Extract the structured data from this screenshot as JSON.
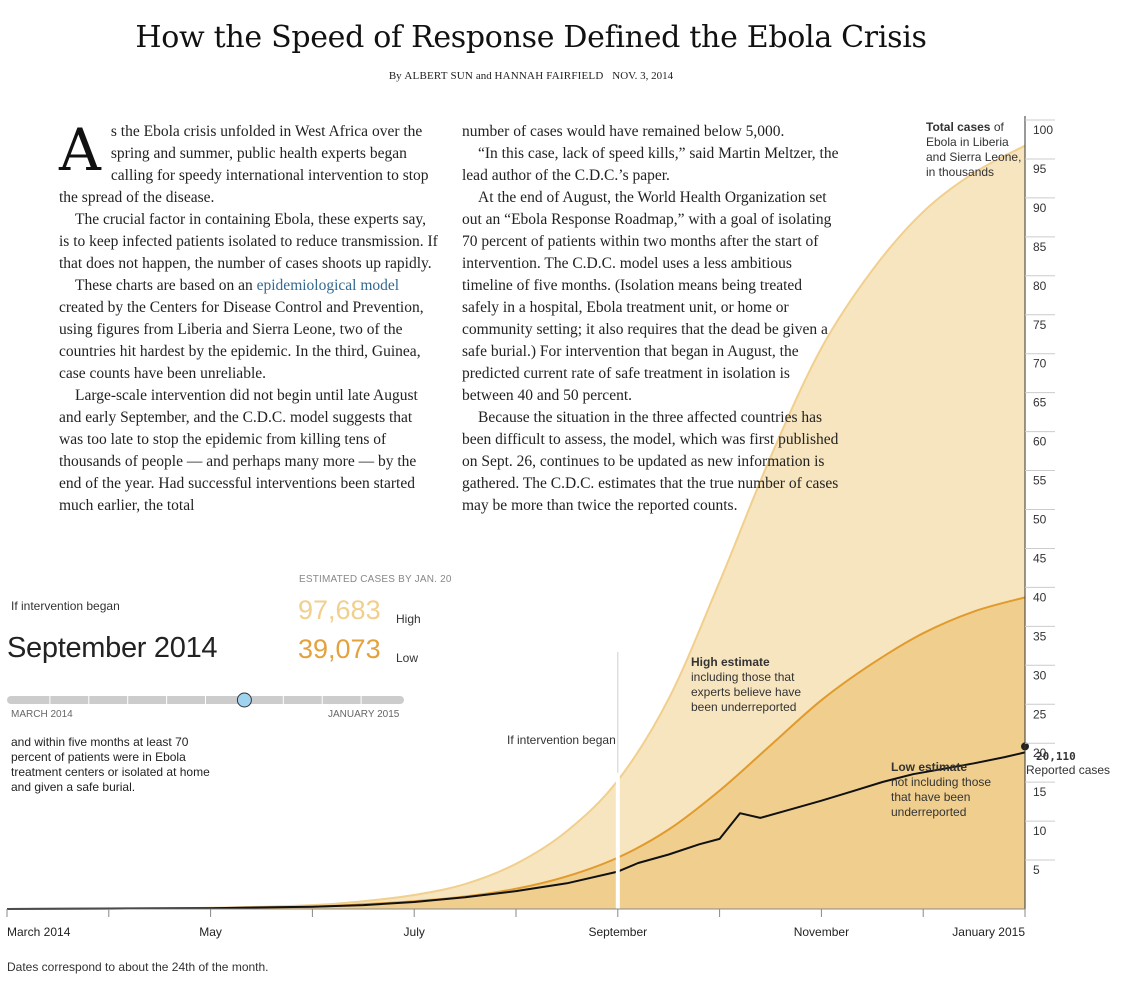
{
  "header": {
    "title": "How the Speed of Response Defined the Ebola Crisis",
    "byline_prefix": "By",
    "author1": "Albert Sun",
    "byline_and": "and",
    "author2": "Hannah Fairfield",
    "date": "NOV. 3, 2014"
  },
  "article": {
    "dropcap": "A",
    "col1": {
      "p1": "s the Ebola crisis unfolded in West Africa over the spring and summer, public health experts began calling for speedy international intervention to stop the spread of the disease.",
      "p2": "The crucial factor in containing Ebola, these experts say, is to keep infected patients isolated to reduce transmission. If that does not happen, the number of cases shoots up rapidly.",
      "p3_before_link": "These charts are based on an ",
      "p3_link": "epidemiological model",
      "p3_after_link": " created by the Centers for Disease Control and Prevention, using figures from Liberia and Sierra Leone, two of the countries hit hardest by the epidemic. In the third, Guinea, case counts have been unreliable.",
      "p4": "Large-scale intervention did not begin until late August and early September, and the C.D.C. model suggests that was too late to stop the epidemic from killing tens of thousands of people — and perhaps many more — by the end of the year. Had successful interventions been started much earlier, the total"
    },
    "col2": {
      "p1": "number of cases would have remained below 5,000.",
      "p2": "“In this case, lack of speed kills,” said Martin Meltzer, the lead author of the C.D.C.’s paper.",
      "p3": "At the end of August, the World Health Organization set out an “Ebola Response Roadmap,” with a goal of isolating 70 percent of patients within two months after the start of intervention. The C.D.C. model uses a less ambitious timeline of five months. (Isolation means being treated safely in a hospital, Ebola treatment unit, or home or community setting; it also requires that the dead be given a safe burial.) For intervention that began in August, the predicted current rate of safe treatment in isolation is between 40 and 50 percent.",
      "p4": "Because the situation in the three affected countries has been difficult to assess, the model, which was first published on Sept. 26, continues to be updated as new information is gathered. The C.D.C. estimates that the true number of cases may be more than twice the reported counts."
    }
  },
  "controls": {
    "intervention_label": "If intervention began",
    "selected_month": "September 2014",
    "estimate_header": "ESTIMATED CASES BY JAN. 20",
    "high_value": "97,683",
    "high_label": "High",
    "low_value": "39,073",
    "low_label": "Low",
    "slider_start": "MARCH 2014",
    "slider_end": "JANUARY 2015",
    "slider_value": 0.6,
    "slider_steps": 10,
    "condition_text": "and within five months at least 70 percent of patients were in Ebola treatment centers or isolated at home and given a safe burial."
  },
  "colors": {
    "high_fill": "#f7e5bf",
    "high_line": "#f1cf8d",
    "low_fill": "#f0cf8e",
    "low_line": "#e19a2c",
    "reported_line": "#111111",
    "intervention_marker": "#ffffff",
    "slider_track": "#cccccc",
    "slider_handle": "#9fd3ef"
  },
  "chart_data": {
    "type": "area",
    "title": "Total cases of Ebola in Liberia and Sierra Leone, in thousands",
    "y_title_bold": "Total cases",
    "y_title_rest": "of Ebola in Liberia and Sierra Leone, in thousands",
    "ylim": [
      0,
      100
    ],
    "y_ticks": [
      5,
      10,
      15,
      20,
      25,
      30,
      35,
      40,
      45,
      50,
      55,
      60,
      65,
      70,
      75,
      80,
      85,
      90,
      95,
      100
    ],
    "x_ticks": [
      "March 2014",
      "May",
      "July",
      "September",
      "November",
      "January 2015"
    ],
    "x_tick_months": [
      0,
      2,
      4,
      6,
      8,
      10
    ],
    "xlim_months": [
      0,
      10
    ],
    "intervention_month": 6,
    "intervention_label": "If intervention began",
    "footnote": "Dates correspond to about the 24th of the month.",
    "series": [
      {
        "name": "High estimate",
        "note": "including those that experts believe have been underreported",
        "x": [
          0,
          1,
          2,
          3,
          3.5,
          4,
          4.5,
          5,
          5.5,
          6,
          6.5,
          7,
          7.5,
          8,
          8.5,
          9,
          9.5,
          10
        ],
        "y": [
          0,
          0.05,
          0.15,
          0.5,
          1.0,
          1.8,
          3.2,
          5.8,
          10.0,
          16.5,
          27.0,
          42.0,
          58.0,
          72.0,
          82.0,
          89.5,
          94.5,
          98.0
        ]
      },
      {
        "name": "Low estimate",
        "note": "not including those that have been underreported",
        "x": [
          0,
          1,
          2,
          3,
          3.5,
          4,
          4.5,
          5,
          5.5,
          6,
          6.5,
          7,
          7.5,
          8,
          8.5,
          9,
          9.5,
          10
        ],
        "y": [
          0,
          0.05,
          0.1,
          0.3,
          0.6,
          1.0,
          1.6,
          2.6,
          4.2,
          6.6,
          10.2,
          15.2,
          21.0,
          26.8,
          31.5,
          35.4,
          38.2,
          40.0
        ]
      },
      {
        "name": "Reported cases",
        "end_label": "20,110",
        "x": [
          0,
          1,
          2,
          3,
          3.5,
          4,
          4.5,
          5,
          5.5,
          6,
          6.2,
          6.5,
          6.8,
          7.0,
          7.2,
          7.4,
          7.7,
          8.0,
          8.3,
          8.6,
          8.9,
          9.2,
          9.5,
          9.8,
          10
        ],
        "y": [
          0,
          0.05,
          0.1,
          0.3,
          0.5,
          0.9,
          1.5,
          2.3,
          3.3,
          4.8,
          5.9,
          7.0,
          8.3,
          9.0,
          12.3,
          11.7,
          12.8,
          13.9,
          15.1,
          16.3,
          17.3,
          18.0,
          18.7,
          19.5,
          20.1
        ]
      }
    ]
  }
}
